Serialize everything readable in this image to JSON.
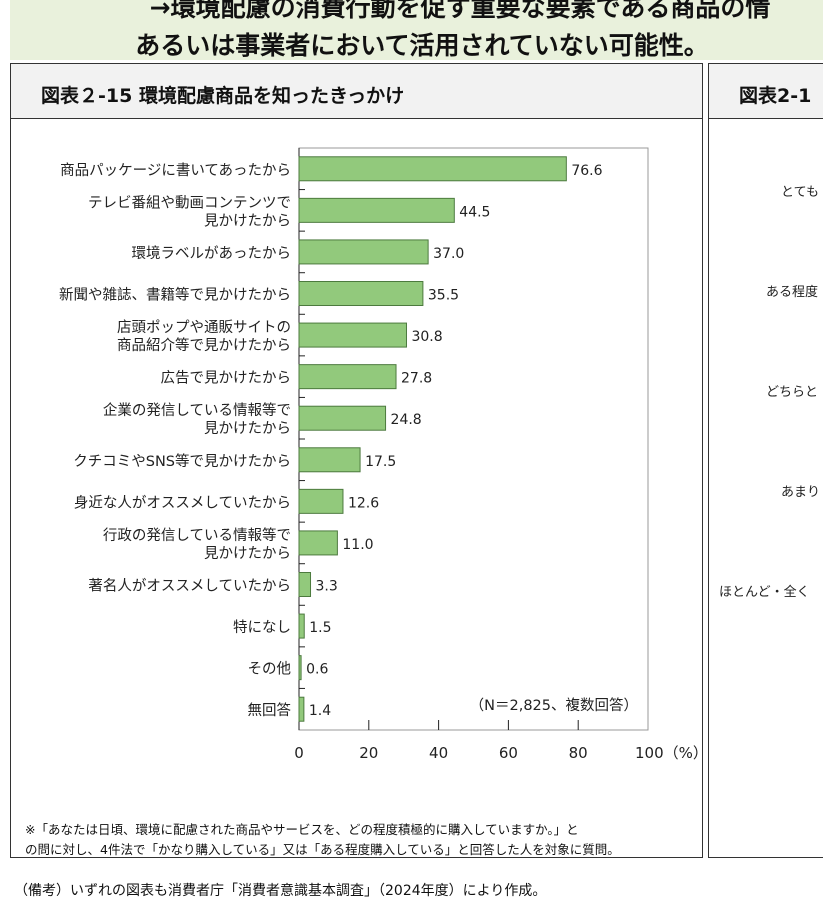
{
  "banner": {
    "line1": "→環境配慮の消費行動を促す重要な要素である商品の情",
    "line2": "あるいは事業者において活用されていない可能性。"
  },
  "left_panel": {
    "title": "図表２-15 環境配慮商品を知ったきっかけ",
    "note_line1": "※「あなたは日頃、環境に配慮された商品やサービスを、どの程度積極的に購入していますか。」と",
    "note_line2": "の問に対し、4件法で「かなり購入している」又は「ある程度購入している」と回答した人を対象に質問。"
  },
  "right_panel": {
    "title": "図表2-1",
    "labels": [
      "とても",
      "ある程度",
      "どちらと",
      "あまり",
      "ほとんど・全く"
    ]
  },
  "footer": "（備考）いずれの図表も消費者庁「消費者意識基本調査」（2024年度）により作成。",
  "colors": {
    "bar": "#92c97c",
    "bar_border": "#4c7a3e",
    "banner": "#e9f1dc"
  },
  "chart_data": {
    "type": "bar",
    "orientation": "horizontal",
    "categories": [
      [
        "商品パッケージに書いてあったから"
      ],
      [
        "テレビ番組や動画コンテンツで",
        "見かけたから"
      ],
      [
        "環境ラベルがあったから"
      ],
      [
        "新聞や雑誌、書籍等で見かけたから"
      ],
      [
        "店頭ポップや通販サイトの",
        "商品紹介等で見かけたから"
      ],
      [
        "広告で見かけたから"
      ],
      [
        "企業の発信している情報等で",
        "見かけたから"
      ],
      [
        "クチコミやSNS等で見かけたから"
      ],
      [
        "身近な人がオススメしていたから"
      ],
      [
        "行政の発信している情報等で",
        "見かけたから"
      ],
      [
        "著名人がオススメしていたから"
      ],
      [
        "特になし"
      ],
      [
        "その他"
      ],
      [
        "無回答"
      ]
    ],
    "values": [
      76.6,
      44.5,
      37.0,
      35.5,
      30.8,
      27.8,
      24.8,
      17.5,
      12.6,
      11.0,
      3.3,
      1.5,
      0.6,
      1.4
    ],
    "value_labels": [
      "76.6",
      "44.5",
      "37.0",
      "35.5",
      "30.8",
      "27.8",
      "24.8",
      "17.5",
      "12.6",
      "11.0",
      "3.3",
      "1.5",
      "0.6",
      "1.4"
    ],
    "xlim": [
      0,
      100
    ],
    "xticks": [
      "0",
      "20",
      "40",
      "60",
      "80",
      "100（%）"
    ],
    "annotation": "（N＝2,825、複数回答）",
    "grid": false
  }
}
